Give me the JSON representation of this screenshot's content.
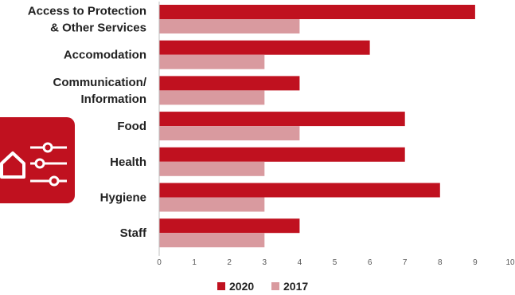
{
  "icon": {
    "name": "home-settings-icon",
    "color": "#c0111f"
  },
  "colors": {
    "series_2020": "#c0111f",
    "series_2017": "#d99a9f",
    "axis": "#bfbfbf"
  },
  "chart_data": {
    "type": "bar",
    "orientation": "horizontal",
    "categories": [
      [
        "Access to Protection",
        "& Other Services"
      ],
      [
        "Accomodation"
      ],
      [
        "Communication/",
        "Information"
      ],
      [
        "Food"
      ],
      [
        "Health"
      ],
      [
        "Hygiene"
      ],
      [
        "Staff"
      ]
    ],
    "series": [
      {
        "name": "2020",
        "values": [
          9,
          6,
          4,
          7,
          7,
          8,
          4
        ]
      },
      {
        "name": "2017",
        "values": [
          4,
          3,
          3,
          4,
          3,
          3,
          3
        ]
      }
    ],
    "xlim": [
      0,
      10
    ],
    "xticks": [
      "0",
      "1",
      "2",
      "3",
      "4",
      "5",
      "6",
      "7",
      "8",
      "9",
      "10"
    ],
    "grid": false,
    "legend": "bottom"
  }
}
